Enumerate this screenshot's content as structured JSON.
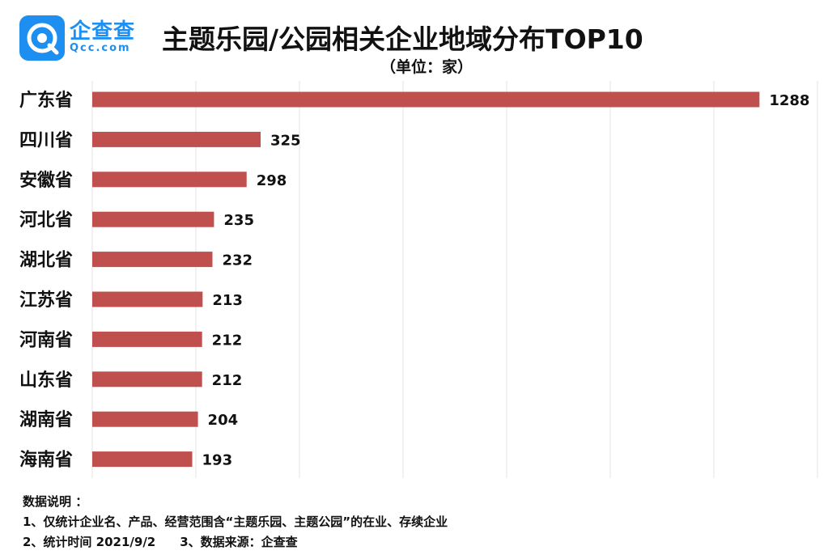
{
  "brand": {
    "name": "企查查",
    "domain": "Qcc.com",
    "logo_letter": "Q",
    "logo_color": "#1d8ff0"
  },
  "title": "主题乐园/公园相关企业地域分布TOP10",
  "subtitle": "（单位：家）",
  "chart_data": {
    "type": "bar",
    "orientation": "horizontal",
    "categories": [
      "广东省",
      "四川省",
      "安徽省",
      "河北省",
      "湖北省",
      "江苏省",
      "河南省",
      "山东省",
      "湖南省",
      "海南省"
    ],
    "values": [
      1288,
      325,
      298,
      235,
      232,
      213,
      212,
      212,
      204,
      193
    ],
    "bar_color": "#c0504d",
    "xlim": [
      0,
      1400
    ],
    "grid": true,
    "data_labels": true
  },
  "notes": {
    "heading": "数据说明 ：",
    "line1": "1、仅统计企业名、产品、经营范围含“主题乐园、主题公园”的在业、存续企业",
    "line2": "2、统计时间 2021/9/2　　3、数据来源：企查查"
  }
}
